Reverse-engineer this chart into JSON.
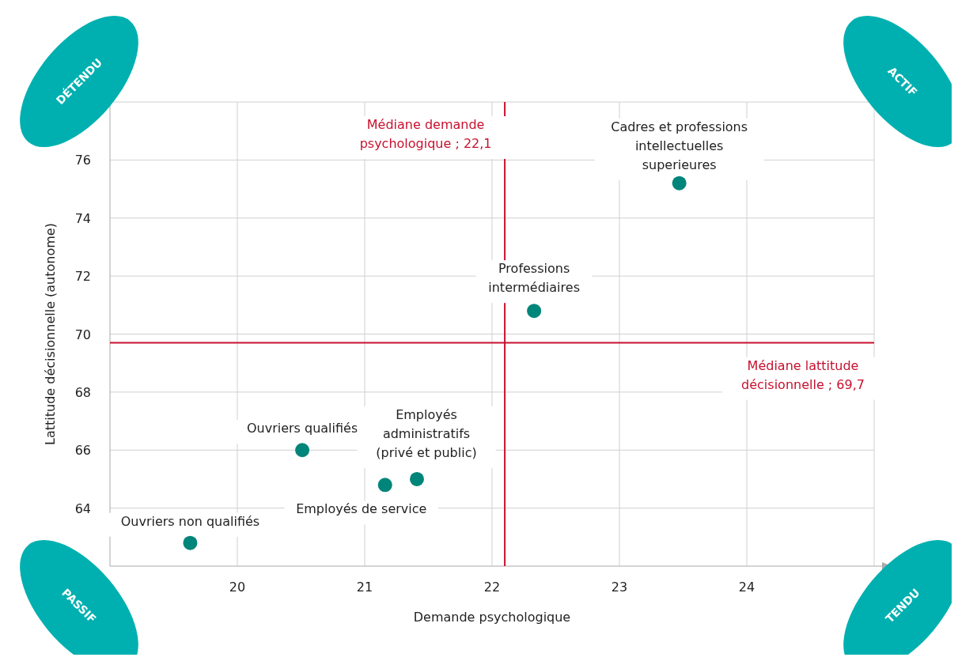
{
  "chart_data": {
    "type": "scatter",
    "xlabel": "Demande psychologique",
    "ylabel": "Lattitude décisionnelle (autonome)",
    "x": [
      19.63,
      20.51,
      21.16,
      21.41,
      22.33,
      23.47
    ],
    "values": [
      62.8,
      66.0,
      64.8,
      65.0,
      70.8,
      75.2
    ],
    "color": "#00857a",
    "marker": "circle",
    "xlim": [
      19,
      25
    ],
    "xticks": [
      20,
      21,
      22,
      23,
      24
    ],
    "ylim": [
      62,
      78
    ],
    "yticks": [
      64,
      66,
      68,
      70,
      72,
      74,
      76
    ],
    "grid": true,
    "ref_lines": [
      {
        "axis": "x",
        "value": 22.1,
        "label": "Médiane demande\npsychologique ; 22,1",
        "color": "#c8102e"
      },
      {
        "axis": "y",
        "value": 69.7,
        "label": "Médiane lattitude\ndécisionnelle ; 69,7",
        "color": "#c8102e"
      }
    ],
    "annotations": [
      {
        "text": "Ouvriers non qualifiés",
        "x": 19.63,
        "y": 62.8
      },
      {
        "text": "Ouvriers qualifiés",
        "x": 20.51,
        "y": 66.0
      },
      {
        "text": "Employés de service",
        "x": 21.16,
        "y": 64.8
      },
      {
        "text": "Employés\nadministratifs\n(privé et public)",
        "x": 21.41,
        "y": 65.0
      },
      {
        "text": "Professions\nintermédiaires",
        "x": 22.33,
        "y": 70.8
      },
      {
        "text": "Cadres et professions\nintellectuelles\nsuperieures",
        "x": 23.47,
        "y": 75.2
      },
      "DÉTENDU",
      "ACTIF",
      "PASSIF",
      "TENDU"
    ]
  }
}
